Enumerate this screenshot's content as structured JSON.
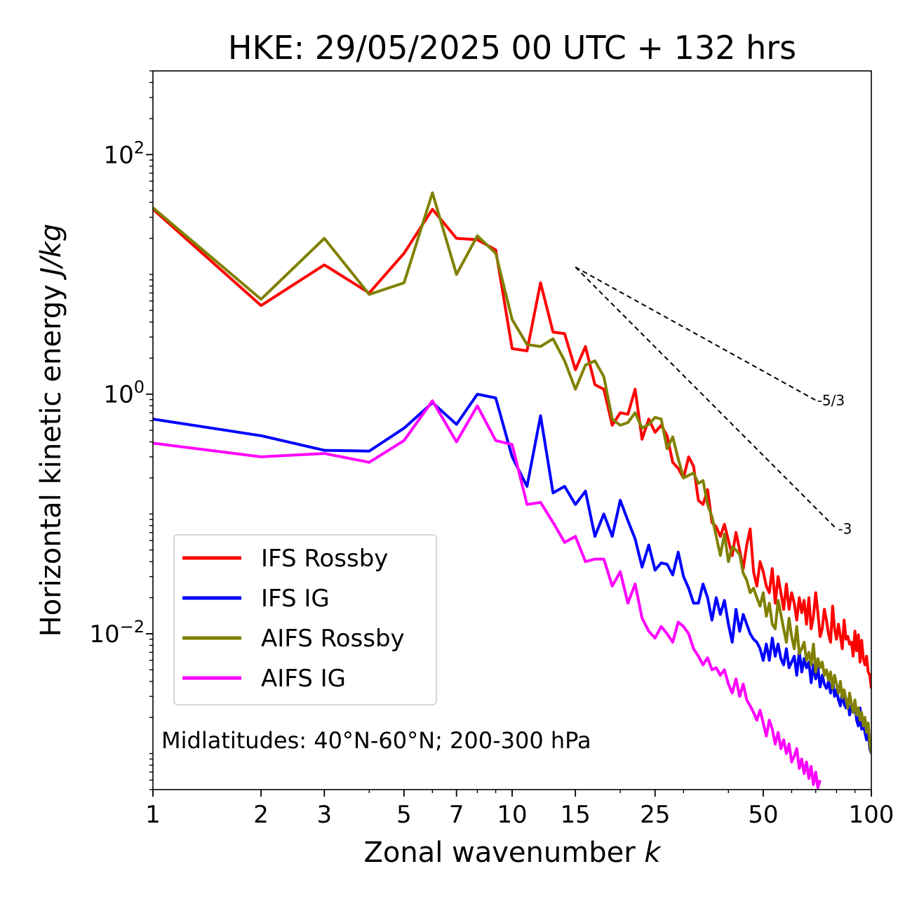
{
  "chart_data": {
    "type": "line",
    "title": "HKE: 29/05/2025 00 UTC + 132 hrs",
    "xlabel_text": "Zonal wavenumber ",
    "xlabel_var": "k",
    "ylabel_text": "Horizontal kinetic energy ",
    "ylabel_units": "J/kg",
    "xscale": "log",
    "yscale": "log",
    "xlim": [
      1,
      100
    ],
    "ylim": [
      0.0005,
      500
    ],
    "x_ticks": [
      {
        "value": 1,
        "label": "1"
      },
      {
        "value": 2,
        "label": "2"
      },
      {
        "value": 3,
        "label": "3"
      },
      {
        "value": 5,
        "label": "5"
      },
      {
        "value": 7,
        "label": "7"
      },
      {
        "value": 10,
        "label": "10"
      },
      {
        "value": 15,
        "label": "15"
      },
      {
        "value": 25,
        "label": "25"
      },
      {
        "value": 50,
        "label": "50"
      },
      {
        "value": 100,
        "label": "100"
      }
    ],
    "y_ticks": [
      {
        "value": 100,
        "base": "10",
        "exp": "2"
      },
      {
        "value": 1,
        "base": "10",
        "exp": "0"
      },
      {
        "value": 0.01,
        "base": "10",
        "exp": "−2"
      }
    ],
    "annotation": "Midlatitudes: 40°N-60°N; 200-300 hPa",
    "legend_position": "lower-left",
    "series": [
      {
        "name": "IFS Rossby",
        "color": "#ff0000",
        "x": [
          1,
          2,
          3,
          4,
          5,
          6,
          7,
          8,
          9,
          10,
          11,
          12,
          13,
          14,
          15,
          16,
          17,
          18,
          19,
          20,
          21,
          22,
          23,
          24,
          25,
          26,
          27,
          28,
          29,
          30,
          31,
          32,
          33,
          34,
          35,
          36,
          37,
          38,
          39,
          40,
          41,
          42,
          43,
          44,
          45,
          46,
          47,
          48,
          49,
          50,
          51,
          52,
          53,
          54,
          55,
          56,
          57,
          58,
          59,
          60,
          61,
          62,
          63,
          64,
          65,
          66,
          67,
          68,
          69,
          70,
          71,
          72,
          73,
          74,
          75,
          76,
          77,
          78,
          79,
          80,
          81,
          82,
          83,
          84,
          85,
          86,
          87,
          88,
          89,
          90,
          91,
          92,
          93,
          94,
          95,
          96,
          97,
          98,
          99,
          100
        ],
        "y": [
          35,
          5.5,
          12,
          7,
          15,
          35,
          20,
          19.5,
          16,
          2.4,
          2.3,
          8.5,
          3.3,
          3.2,
          1.6,
          2.5,
          1.2,
          1.1,
          0.55,
          0.7,
          0.68,
          1.1,
          0.42,
          0.62,
          0.48,
          0.55,
          0.45,
          0.27,
          0.24,
          0.2,
          0.3,
          0.25,
          0.13,
          0.12,
          0.16,
          0.085,
          0.078,
          0.065,
          0.082,
          0.06,
          0.045,
          0.07,
          0.05,
          0.035,
          0.055,
          0.075,
          0.033,
          0.025,
          0.04,
          0.033,
          0.025,
          0.022,
          0.035,
          0.018,
          0.03,
          0.022,
          0.016,
          0.026,
          0.016,
          0.022,
          0.018,
          0.013,
          0.02,
          0.015,
          0.019,
          0.012,
          0.02,
          0.011,
          0.014,
          0.022,
          0.015,
          0.0095,
          0.011,
          0.016,
          0.013,
          0.01,
          0.0085,
          0.017,
          0.011,
          0.009,
          0.012,
          0.0095,
          0.0075,
          0.013,
          0.009,
          0.0095,
          0.0082,
          0.0085,
          0.0065,
          0.0105,
          0.0072,
          0.0098,
          0.0058,
          0.0088,
          0.0062,
          0.0055,
          0.0065,
          0.0048,
          0.0045,
          0.0035
        ]
      },
      {
        "name": "IFS IG",
        "color": "#0000ff",
        "x": [
          1,
          2,
          3,
          4,
          5,
          6,
          7,
          8,
          9,
          10,
          11,
          12,
          13,
          14,
          15,
          16,
          17,
          18,
          19,
          20,
          21,
          22,
          23,
          24,
          25,
          26,
          27,
          28,
          29,
          30,
          31,
          32,
          33,
          34,
          35,
          36,
          37,
          38,
          39,
          40,
          41,
          42,
          43,
          44,
          45,
          46,
          47,
          48,
          49,
          50,
          51,
          52,
          53,
          54,
          55,
          56,
          57,
          58,
          59,
          60,
          61,
          62,
          63,
          64,
          65,
          66,
          67,
          68,
          69,
          70,
          71,
          72,
          73,
          74,
          75,
          76,
          77,
          78,
          79,
          80,
          81,
          82,
          83,
          84,
          85,
          86,
          87,
          88,
          89,
          90,
          91,
          92,
          93,
          94,
          95,
          96,
          97,
          98,
          99,
          100
        ],
        "y": [
          0.62,
          0.45,
          0.34,
          0.335,
          0.52,
          0.85,
          0.56,
          1.0,
          0.93,
          0.3,
          0.17,
          0.66,
          0.15,
          0.17,
          0.12,
          0.155,
          0.065,
          0.1,
          0.065,
          0.13,
          0.088,
          0.062,
          0.036,
          0.055,
          0.034,
          0.039,
          0.038,
          0.031,
          0.048,
          0.03,
          0.024,
          0.018,
          0.018,
          0.026,
          0.02,
          0.013,
          0.02,
          0.0145,
          0.019,
          0.012,
          0.0085,
          0.016,
          0.0105,
          0.0145,
          0.012,
          0.01,
          0.009,
          0.0085,
          0.0075,
          0.006,
          0.0082,
          0.006,
          0.0092,
          0.0065,
          0.0082,
          0.0062,
          0.0055,
          0.0075,
          0.0052,
          0.0058,
          0.0065,
          0.0045,
          0.0072,
          0.0048,
          0.0062,
          0.0052,
          0.0058,
          0.0039,
          0.0055,
          0.0042,
          0.0052,
          0.0036,
          0.0045,
          0.0038,
          0.0035,
          0.004,
          0.0032,
          0.0042,
          0.003,
          0.0034,
          0.0028,
          0.0025,
          0.0033,
          0.0026,
          0.0024,
          0.0028,
          0.0021,
          0.0025,
          0.0022,
          0.0026,
          0.0019,
          0.0017,
          0.0024,
          0.0016,
          0.0018,
          0.0015,
          0.0013,
          0.0016,
          0.0011,
          0.001
        ]
      },
      {
        "name": "AIFS Rossby",
        "color": "#808000",
        "x": [
          1,
          2,
          3,
          4,
          5,
          6,
          7,
          8,
          9,
          10,
          11,
          12,
          13,
          14,
          15,
          16,
          17,
          18,
          19,
          20,
          21,
          22,
          23,
          24,
          25,
          26,
          27,
          28,
          29,
          30,
          31,
          32,
          33,
          34,
          35,
          36,
          37,
          38,
          39,
          40,
          41,
          42,
          43,
          44,
          45,
          46,
          47,
          48,
          49,
          50,
          51,
          52,
          53,
          54,
          55,
          56,
          57,
          58,
          59,
          60,
          61,
          62,
          63,
          64,
          65,
          66,
          67,
          68,
          69,
          70,
          71,
          72,
          73,
          74,
          75,
          76,
          77,
          78,
          79,
          80,
          81,
          82,
          83,
          84,
          85,
          86,
          87,
          88,
          89,
          90,
          91,
          92,
          93,
          94,
          95,
          96,
          97,
          98,
          99,
          100
        ],
        "y": [
          36,
          6.2,
          20,
          6.8,
          8.5,
          48,
          10,
          21,
          15,
          4.2,
          2.6,
          2.5,
          2.9,
          1.9,
          1.1,
          1.75,
          1.9,
          1.4,
          0.62,
          0.55,
          0.58,
          0.7,
          0.52,
          0.56,
          0.64,
          0.62,
          0.35,
          0.44,
          0.29,
          0.2,
          0.21,
          0.22,
          0.18,
          0.19,
          0.12,
          0.095,
          0.065,
          0.045,
          0.068,
          0.04,
          0.053,
          0.05,
          0.046,
          0.032,
          0.028,
          0.022,
          0.024,
          0.02,
          0.017,
          0.022,
          0.014,
          0.018,
          0.012,
          0.011,
          0.019,
          0.0145,
          0.011,
          0.0085,
          0.0135,
          0.0095,
          0.0075,
          0.0115,
          0.0068,
          0.0075,
          0.0085,
          0.006,
          0.007,
          0.0055,
          0.0082,
          0.0048,
          0.0062,
          0.0052,
          0.0058,
          0.0045,
          0.005,
          0.0041,
          0.0048,
          0.0035,
          0.0045,
          0.0038,
          0.0032,
          0.004,
          0.0029,
          0.0034,
          0.0028,
          0.0024,
          0.0032,
          0.0026,
          0.0022,
          0.0028,
          0.0021,
          0.0024,
          0.0019,
          0.0022,
          0.0017,
          0.002,
          0.0015,
          0.0018,
          0.0012,
          0.001
        ]
      },
      {
        "name": "AIFS IG",
        "color": "#ff00ff",
        "x": [
          1,
          2,
          3,
          4,
          5,
          6,
          7,
          8,
          9,
          10,
          11,
          12,
          13,
          14,
          15,
          16,
          17,
          18,
          19,
          20,
          21,
          22,
          23,
          24,
          25,
          26,
          27,
          28,
          29,
          30,
          31,
          32,
          33,
          34,
          35,
          36,
          37,
          38,
          39,
          40,
          41,
          42,
          43,
          44,
          45,
          46,
          47,
          48,
          49,
          50,
          51,
          52,
          53,
          54,
          55,
          56,
          57,
          58,
          59,
          60,
          61,
          62,
          63,
          64,
          65,
          66,
          67,
          68,
          69,
          70,
          71,
          72
        ],
        "y": [
          0.39,
          0.3,
          0.32,
          0.27,
          0.41,
          0.88,
          0.4,
          0.8,
          0.41,
          0.38,
          0.12,
          0.125,
          0.085,
          0.058,
          0.065,
          0.04,
          0.042,
          0.042,
          0.025,
          0.033,
          0.018,
          0.026,
          0.0135,
          0.0105,
          0.0092,
          0.0115,
          0.01,
          0.0085,
          0.0125,
          0.0115,
          0.01,
          0.0075,
          0.0065,
          0.0055,
          0.0063,
          0.005,
          0.0052,
          0.0045,
          0.005,
          0.0038,
          0.0032,
          0.0042,
          0.003,
          0.0038,
          0.0028,
          0.0025,
          0.0022,
          0.0019,
          0.0023,
          0.0018,
          0.0014,
          0.0019,
          0.0016,
          0.0012,
          0.0015,
          0.0011,
          0.0013,
          0.001,
          0.0012,
          0.00085,
          0.00095,
          0.0011,
          0.00075,
          0.0009,
          0.00068,
          0.00085,
          0.00062,
          0.00078,
          0.00055,
          0.0007,
          0.00052,
          0.0006
        ]
      }
    ],
    "reference_slopes": [
      {
        "label": "-5/3",
        "x": [
          15,
          70
        ],
        "y": [
          11.5,
          0.89
        ]
      },
      {
        "label": "-3",
        "x": [
          15,
          80
        ],
        "y": [
          11.5,
          0.075
        ]
      }
    ]
  }
}
